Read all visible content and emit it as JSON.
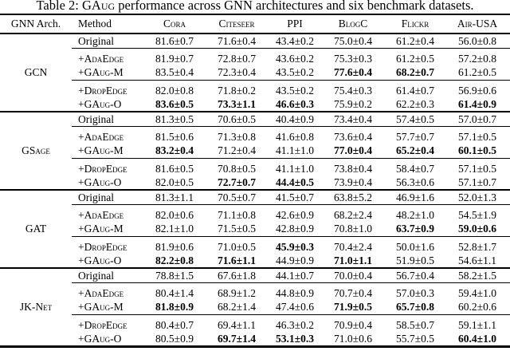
{
  "theme": {
    "background": "#ffffff",
    "text": "#000000",
    "rule": "#000000"
  },
  "caption": {
    "prefix": "Table 2: ",
    "brand": "GAug",
    "suffix": " performance across GNN architectures and six benchmark datasets."
  },
  "table": {
    "arch_header": "GNN Arch.",
    "method_header": "Method",
    "dataset_headers": [
      "Cora",
      "Citeseer",
      "PPI",
      "BlogC",
      "Flickr",
      "Air-USA"
    ],
    "blocks": [
      {
        "arch": "GCN",
        "groups": [
          [
            {
              "method": "Original",
              "cells": [
                {
                  "text": "81.6±0.7",
                  "bold": false
                },
                {
                  "text": "71.6±0.4",
                  "bold": false
                },
                {
                  "text": "43.4±0.2",
                  "bold": false
                },
                {
                  "text": "75.0±0.4",
                  "bold": false
                },
                {
                  "text": "61.2±0.4",
                  "bold": false
                },
                {
                  "text": "56.0±0.8",
                  "bold": false
                }
              ]
            }
          ],
          [
            {
              "method": "+AdaEdge",
              "cells": [
                {
                  "text": "81.9±0.7",
                  "bold": false
                },
                {
                  "text": "72.8±0.7",
                  "bold": false
                },
                {
                  "text": "43.6±0.2",
                  "bold": false
                },
                {
                  "text": "75.3±0.3",
                  "bold": false
                },
                {
                  "text": "61.2±0.5",
                  "bold": false
                },
                {
                  "text": "57.2±0.8",
                  "bold": false
                }
              ]
            },
            {
              "method": "+GAug-M",
              "cells": [
                {
                  "text": "83.5±0.4",
                  "bold": false
                },
                {
                  "text": "72.3±0.4",
                  "bold": false
                },
                {
                  "text": "43.5±0.2",
                  "bold": false
                },
                {
                  "text": "77.6±0.4",
                  "bold": true
                },
                {
                  "text": "68.2±0.7",
                  "bold": true
                },
                {
                  "text": "61.2±0.5",
                  "bold": false
                }
              ]
            }
          ],
          [
            {
              "method": "+DropEdge",
              "cells": [
                {
                  "text": "82.0±0.8",
                  "bold": false
                },
                {
                  "text": "71.8±0.2",
                  "bold": false
                },
                {
                  "text": "43.5±0.2",
                  "bold": false
                },
                {
                  "text": "75.4±0.3",
                  "bold": false
                },
                {
                  "text": "61.4±0.7",
                  "bold": false
                },
                {
                  "text": "56.9±0.6",
                  "bold": false
                }
              ]
            },
            {
              "method": "+GAug-O",
              "cells": [
                {
                  "text": "83.6±0.5",
                  "bold": true
                },
                {
                  "text": "73.3±1.1",
                  "bold": true
                },
                {
                  "text": "46.6±0.3",
                  "bold": true
                },
                {
                  "text": "75.9±0.2",
                  "bold": false
                },
                {
                  "text": "62.2±0.3",
                  "bold": false
                },
                {
                  "text": "61.4±0.9",
                  "bold": true
                }
              ]
            }
          ]
        ]
      },
      {
        "arch": "GSage",
        "groups": [
          [
            {
              "method": "Original",
              "cells": [
                {
                  "text": "81.3±0.5",
                  "bold": false
                },
                {
                  "text": "70.6±0.5",
                  "bold": false
                },
                {
                  "text": "40.4±0.9",
                  "bold": false
                },
                {
                  "text": "73.4±0.4",
                  "bold": false
                },
                {
                  "text": "57.4±0.5",
                  "bold": false
                },
                {
                  "text": "57.0±0.7",
                  "bold": false
                }
              ]
            }
          ],
          [
            {
              "method": "+AdaEdge",
              "cells": [
                {
                  "text": "81.5±0.6",
                  "bold": false
                },
                {
                  "text": "71.3±0.8",
                  "bold": false
                },
                {
                  "text": "41.6±0.8",
                  "bold": false
                },
                {
                  "text": "73.6±0.4",
                  "bold": false
                },
                {
                  "text": "57.7±0.7",
                  "bold": false
                },
                {
                  "text": "57.1±0.5",
                  "bold": false
                }
              ]
            },
            {
              "method": "+GAug-M",
              "cells": [
                {
                  "text": "83.2±0.4",
                  "bold": true
                },
                {
                  "text": "71.2±0.4",
                  "bold": false
                },
                {
                  "text": "41.1±1.0",
                  "bold": false
                },
                {
                  "text": "77.0±0.4",
                  "bold": true
                },
                {
                  "text": "65.2±0.4",
                  "bold": true
                },
                {
                  "text": "60.1±0.5",
                  "bold": true
                }
              ]
            }
          ],
          [
            {
              "method": "+DropEdge",
              "cells": [
                {
                  "text": "81.6±0.5",
                  "bold": false
                },
                {
                  "text": "70.8±0.5",
                  "bold": false
                },
                {
                  "text": "41.1±1.0",
                  "bold": false
                },
                {
                  "text": "73.8±0.4",
                  "bold": false
                },
                {
                  "text": "58.4±0.7",
                  "bold": false
                },
                {
                  "text": "57.1±0.5",
                  "bold": false
                }
              ]
            },
            {
              "method": "+GAug-O",
              "cells": [
                {
                  "text": "82.0±0.5",
                  "bold": false
                },
                {
                  "text": "72.7±0.7",
                  "bold": true
                },
                {
                  "text": "44.4±0.5",
                  "bold": true
                },
                {
                  "text": "73.9±0.4",
                  "bold": false
                },
                {
                  "text": "56.3±0.6",
                  "bold": false
                },
                {
                  "text": "57.1±0.7",
                  "bold": false
                }
              ]
            }
          ]
        ]
      },
      {
        "arch": "GAT",
        "groups": [
          [
            {
              "method": "Original",
              "cells": [
                {
                  "text": "81.3±1.1",
                  "bold": false
                },
                {
                  "text": "70.5±0.7",
                  "bold": false
                },
                {
                  "text": "41.5±0.7",
                  "bold": false
                },
                {
                  "text": "63.8±5.2",
                  "bold": false
                },
                {
                  "text": "46.9±1.6",
                  "bold": false
                },
                {
                  "text": "52.0±1.3",
                  "bold": false
                }
              ]
            }
          ],
          [
            {
              "method": "+AdaEdge",
              "cells": [
                {
                  "text": "82.0±0.6",
                  "bold": false
                },
                {
                  "text": "71.1±0.8",
                  "bold": false
                },
                {
                  "text": "42.6±0.9",
                  "bold": false
                },
                {
                  "text": "68.2±2.4",
                  "bold": false
                },
                {
                  "text": "48.2±1.0",
                  "bold": false
                },
                {
                  "text": "54.5±1.9",
                  "bold": false
                }
              ]
            },
            {
              "method": "+GAug-M",
              "cells": [
                {
                  "text": "82.1±1.0",
                  "bold": false
                },
                {
                  "text": "71.5±0.5",
                  "bold": false
                },
                {
                  "text": "42.8±0.9",
                  "bold": false
                },
                {
                  "text": "70.8±1.0",
                  "bold": false
                },
                {
                  "text": "63.7±0.9",
                  "bold": true
                },
                {
                  "text": "59.0±0.6",
                  "bold": true
                }
              ]
            }
          ],
          [
            {
              "method": "+DropEdge",
              "cells": [
                {
                  "text": "81.9±0.6",
                  "bold": false
                },
                {
                  "text": "71.0±0.5",
                  "bold": false
                },
                {
                  "text": "45.9±0.3",
                  "bold": true
                },
                {
                  "text": "70.4±2.4",
                  "bold": false
                },
                {
                  "text": "50.0±1.6",
                  "bold": false
                },
                {
                  "text": "52.8±1.7",
                  "bold": false
                }
              ]
            },
            {
              "method": "+GAug-O",
              "cells": [
                {
                  "text": "82.2±0.8",
                  "bold": true
                },
                {
                  "text": "71.6±1.1",
                  "bold": true
                },
                {
                  "text": "44.9±0.9",
                  "bold": false
                },
                {
                  "text": "71.0±1.1",
                  "bold": true
                },
                {
                  "text": "51.9±0.5",
                  "bold": false
                },
                {
                  "text": "54.6±1.1",
                  "bold": false
                }
              ]
            }
          ]
        ]
      },
      {
        "arch": "JK-Net",
        "groups": [
          [
            {
              "method": "Original",
              "cells": [
                {
                  "text": "78.8±1.5",
                  "bold": false
                },
                {
                  "text": "67.6±1.8",
                  "bold": false
                },
                {
                  "text": "44.1±0.7",
                  "bold": false
                },
                {
                  "text": "70.0±0.4",
                  "bold": false
                },
                {
                  "text": "56.7±0.4",
                  "bold": false
                },
                {
                  "text": "58.2±1.5",
                  "bold": false
                }
              ]
            }
          ],
          [
            {
              "method": "+AdaEdge",
              "cells": [
                {
                  "text": "80.4±1.4",
                  "bold": false
                },
                {
                  "text": "68.9±1.2",
                  "bold": false
                },
                {
                  "text": "44.8±0.9",
                  "bold": false
                },
                {
                  "text": "70.7±0.4",
                  "bold": false
                },
                {
                  "text": "57.0±0.3",
                  "bold": false
                },
                {
                  "text": "59.4±1.0",
                  "bold": false
                }
              ]
            },
            {
              "method": "+GAug-M",
              "cells": [
                {
                  "text": "81.8±0.9",
                  "bold": true
                },
                {
                  "text": "68.2±1.4",
                  "bold": false
                },
                {
                  "text": "47.4±0.6",
                  "bold": false
                },
                {
                  "text": "71.9±0.5",
                  "bold": true
                },
                {
                  "text": "65.7±0.8",
                  "bold": true
                },
                {
                  "text": "60.2±0.6",
                  "bold": false
                }
              ]
            }
          ],
          [
            {
              "method": "+DropEdge",
              "cells": [
                {
                  "text": "80.4±0.7",
                  "bold": false
                },
                {
                  "text": "69.4±1.1",
                  "bold": false
                },
                {
                  "text": "46.3±0.2",
                  "bold": false
                },
                {
                  "text": "70.9±0.4",
                  "bold": false
                },
                {
                  "text": "58.5±0.7",
                  "bold": false
                },
                {
                  "text": "59.1±1.1",
                  "bold": false
                }
              ]
            },
            {
              "method": "+GAug-O",
              "cells": [
                {
                  "text": "80.5±0.9",
                  "bold": false
                },
                {
                  "text": "69.7±1.4",
                  "bold": true
                },
                {
                  "text": "53.1±0.3",
                  "bold": true
                },
                {
                  "text": "71.0±0.6",
                  "bold": false
                },
                {
                  "text": "55.7±0.5",
                  "bold": false
                },
                {
                  "text": "60.4±1.0",
                  "bold": true
                }
              ]
            }
          ]
        ]
      }
    ]
  }
}
